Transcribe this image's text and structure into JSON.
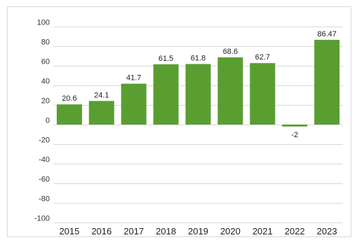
{
  "chart_data": {
    "type": "bar",
    "categories": [
      "2015",
      "2016",
      "2017",
      "2018",
      "2019",
      "2020",
      "2021",
      "2022",
      "2023"
    ],
    "values": [
      20.6,
      24.1,
      41.7,
      61.5,
      61.8,
      68.6,
      62.7,
      -2,
      86.47
    ],
    "data_labels": [
      "20.6",
      "24.1",
      "41.7",
      "61.5",
      "61.8",
      "68.6",
      "62.7",
      "-2",
      "86.47"
    ],
    "title": "",
    "xlabel": "",
    "ylabel": "",
    "ylim": [
      -100,
      100
    ],
    "yticks": [
      100,
      80,
      60,
      40,
      20,
      0,
      -20,
      -40,
      -60,
      -80,
      -100
    ],
    "ytick_labels": [
      "100",
      "80",
      "60",
      "40",
      "20",
      "0",
      "-20",
      "-40",
      "-60",
      "-80",
      "-100"
    ],
    "grid": true,
    "legend": "none",
    "colors": {
      "bar": "#5a9e32",
      "grid": "#d9d9d9",
      "border": "#d9d9d9"
    }
  }
}
